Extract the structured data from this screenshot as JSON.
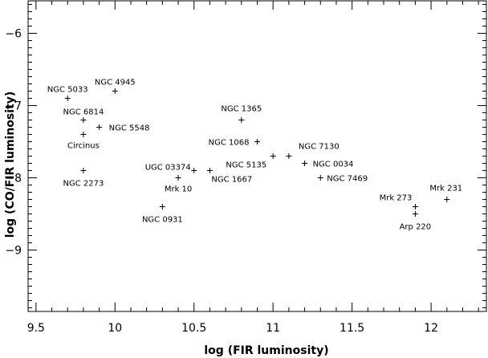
{
  "chart_data": {
    "type": "scatter",
    "xlabel": "log (FIR luminosity)",
    "ylabel": "log (CO/FIR luminosity)",
    "xlim": [
      9.45,
      12.35
    ],
    "ylim": [
      -9.85,
      -5.55
    ],
    "x_ticks": [
      9.5,
      10,
      10.5,
      11,
      11.5,
      12
    ],
    "x_tick_labels": [
      "9.5",
      "10",
      "10.5",
      "11",
      "11.5",
      "12"
    ],
    "y_ticks": [
      -6,
      -7,
      -8,
      -9
    ],
    "y_tick_labels": [
      "−6",
      "−7",
      "−8",
      "−9"
    ],
    "grid": false,
    "legend": "none",
    "marker": "+",
    "points": [
      {
        "name": "NGC 5033",
        "x": 9.7,
        "y": -6.9
      },
      {
        "name": "NGC 4945",
        "x": 10.0,
        "y": -6.8
      },
      {
        "name": "NGC 6814",
        "x": 9.8,
        "y": -7.2
      },
      {
        "name": "NGC 5548",
        "x": 9.9,
        "y": -7.3
      },
      {
        "name": "Circinus",
        "x": 9.8,
        "y": -7.4
      },
      {
        "name": "NGC 2273",
        "x": 9.8,
        "y": -7.9
      },
      {
        "name": "NGC 1365",
        "x": 10.8,
        "y": -7.2
      },
      {
        "name": "NGC 1068",
        "x": 10.9,
        "y": -7.5
      },
      {
        "name": "NGC 7130",
        "x": 11.1,
        "y": -7.7
      },
      {
        "name": "NGC 5135",
        "x": 11.0,
        "y": -7.7
      },
      {
        "name": "NGC 0034",
        "x": 11.2,
        "y": -7.8
      },
      {
        "name": "NGC 7469",
        "x": 11.3,
        "y": -8.0
      },
      {
        "name": "UGC 03374",
        "x": 10.5,
        "y": -7.9
      },
      {
        "name": "Mrk 10",
        "x": 10.4,
        "y": -8.0
      },
      {
        "name": "NGC 1667",
        "x": 10.6,
        "y": -7.9
      },
      {
        "name": "NGC 0931",
        "x": 10.3,
        "y": -8.4
      },
      {
        "name": "Mrk 273",
        "x": 11.9,
        "y": -8.4
      },
      {
        "name": "Arp 220",
        "x": 11.9,
        "y": -8.5
      },
      {
        "name": "Mrk 231",
        "x": 12.1,
        "y": -8.3
      }
    ]
  },
  "colors": {
    "background": "#ffffff",
    "ink": "#000000"
  }
}
